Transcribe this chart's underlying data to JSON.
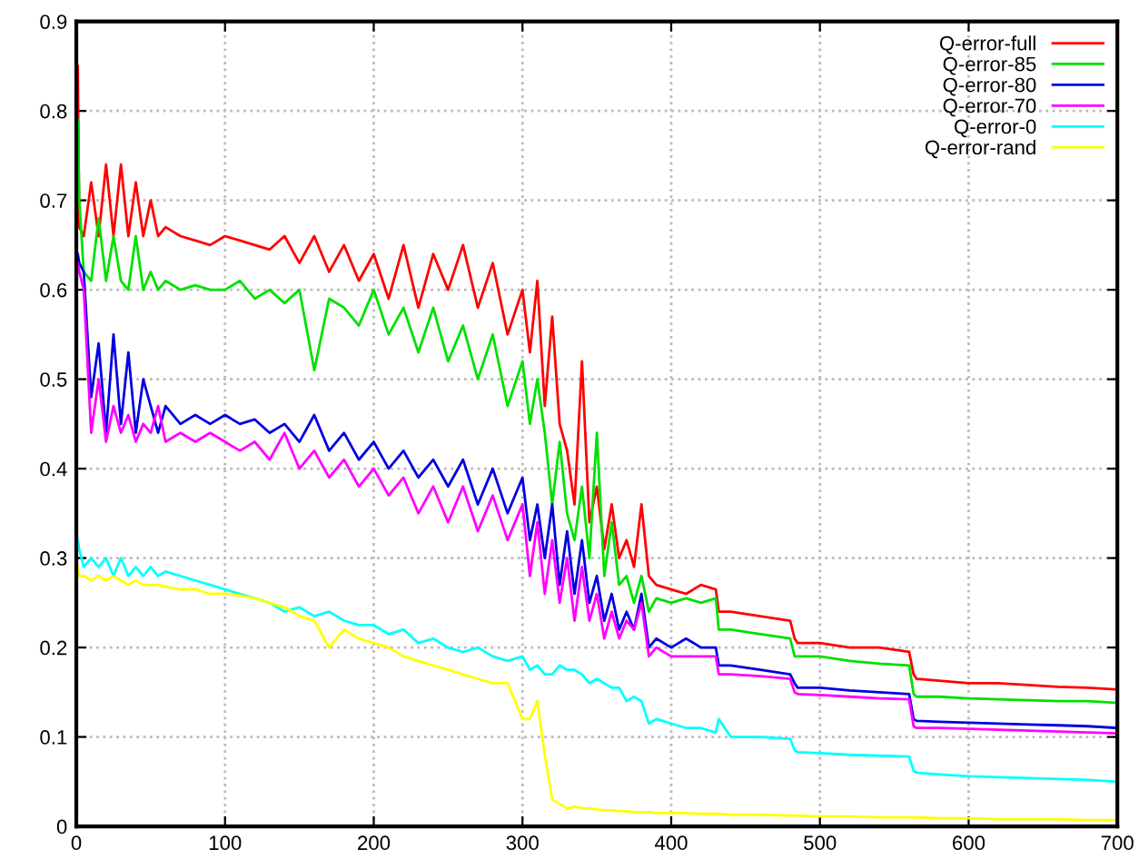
{
  "chart_data": {
    "type": "line",
    "x": [
      1,
      2,
      5,
      10,
      15,
      20,
      25,
      30,
      35,
      40,
      45,
      50,
      55,
      60,
      70,
      80,
      90,
      100,
      110,
      120,
      130,
      140,
      150,
      160,
      170,
      180,
      190,
      200,
      210,
      220,
      230,
      240,
      250,
      260,
      270,
      280,
      290,
      300,
      305,
      310,
      315,
      320,
      325,
      330,
      335,
      340,
      345,
      350,
      355,
      360,
      365,
      370,
      375,
      380,
      385,
      390,
      400,
      410,
      420,
      430,
      432,
      440,
      460,
      480,
      483,
      485,
      500,
      520,
      540,
      560,
      563,
      565,
      580,
      600,
      620,
      640,
      660,
      680,
      700
    ],
    "series": [
      {
        "name": "Q-error-full",
        "color": "#ff0000",
        "values": [
          0.85,
          0.67,
          0.66,
          0.72,
          0.66,
          0.74,
          0.66,
          0.74,
          0.66,
          0.72,
          0.66,
          0.7,
          0.66,
          0.67,
          0.66,
          0.655,
          0.65,
          0.66,
          0.655,
          0.65,
          0.645,
          0.66,
          0.63,
          0.66,
          0.62,
          0.65,
          0.61,
          0.64,
          0.59,
          0.65,
          0.58,
          0.64,
          0.6,
          0.65,
          0.58,
          0.63,
          0.55,
          0.6,
          0.53,
          0.61,
          0.47,
          0.57,
          0.45,
          0.42,
          0.36,
          0.52,
          0.34,
          0.38,
          0.31,
          0.36,
          0.3,
          0.32,
          0.29,
          0.36,
          0.28,
          0.27,
          0.265,
          0.26,
          0.27,
          0.265,
          0.24,
          0.24,
          0.235,
          0.23,
          0.21,
          0.205,
          0.205,
          0.2,
          0.2,
          0.195,
          0.17,
          0.165,
          0.163,
          0.16,
          0.16,
          0.158,
          0.156,
          0.155,
          0.153
        ]
      },
      {
        "name": "Q-error-85",
        "color": "#00e000",
        "values": [
          0.79,
          0.7,
          0.62,
          0.61,
          0.68,
          0.61,
          0.66,
          0.61,
          0.6,
          0.66,
          0.6,
          0.62,
          0.6,
          0.61,
          0.6,
          0.605,
          0.6,
          0.6,
          0.61,
          0.59,
          0.6,
          0.585,
          0.6,
          0.51,
          0.59,
          0.58,
          0.56,
          0.6,
          0.55,
          0.58,
          0.53,
          0.58,
          0.52,
          0.56,
          0.5,
          0.55,
          0.47,
          0.52,
          0.45,
          0.5,
          0.44,
          0.36,
          0.43,
          0.35,
          0.32,
          0.38,
          0.3,
          0.44,
          0.28,
          0.34,
          0.27,
          0.28,
          0.25,
          0.28,
          0.24,
          0.255,
          0.25,
          0.255,
          0.25,
          0.255,
          0.22,
          0.22,
          0.215,
          0.21,
          0.19,
          0.19,
          0.19,
          0.185,
          0.182,
          0.18,
          0.148,
          0.145,
          0.145,
          0.143,
          0.142,
          0.141,
          0.14,
          0.14,
          0.138
        ]
      },
      {
        "name": "Q-error-80",
        "color": "#0000e0",
        "values": [
          0.64,
          0.63,
          0.62,
          0.48,
          0.54,
          0.44,
          0.55,
          0.45,
          0.53,
          0.44,
          0.5,
          0.47,
          0.44,
          0.47,
          0.45,
          0.46,
          0.45,
          0.46,
          0.45,
          0.455,
          0.44,
          0.45,
          0.43,
          0.46,
          0.42,
          0.44,
          0.41,
          0.43,
          0.4,
          0.42,
          0.39,
          0.41,
          0.38,
          0.41,
          0.36,
          0.4,
          0.35,
          0.39,
          0.32,
          0.36,
          0.3,
          0.36,
          0.27,
          0.33,
          0.26,
          0.32,
          0.25,
          0.28,
          0.23,
          0.26,
          0.22,
          0.24,
          0.22,
          0.26,
          0.2,
          0.21,
          0.2,
          0.21,
          0.2,
          0.2,
          0.18,
          0.18,
          0.175,
          0.17,
          0.16,
          0.155,
          0.155,
          0.152,
          0.15,
          0.148,
          0.12,
          0.118,
          0.117,
          0.116,
          0.115,
          0.114,
          0.113,
          0.112,
          0.11
        ]
      },
      {
        "name": "Q-error-70",
        "color": "#ff00ff",
        "values": [
          0.63,
          0.62,
          0.6,
          0.44,
          0.5,
          0.43,
          0.47,
          0.44,
          0.46,
          0.43,
          0.45,
          0.44,
          0.47,
          0.43,
          0.44,
          0.43,
          0.44,
          0.43,
          0.42,
          0.43,
          0.41,
          0.44,
          0.4,
          0.42,
          0.39,
          0.41,
          0.38,
          0.4,
          0.37,
          0.39,
          0.35,
          0.38,
          0.34,
          0.38,
          0.33,
          0.37,
          0.32,
          0.36,
          0.28,
          0.34,
          0.26,
          0.32,
          0.25,
          0.3,
          0.23,
          0.29,
          0.23,
          0.26,
          0.21,
          0.24,
          0.21,
          0.23,
          0.22,
          0.25,
          0.19,
          0.2,
          0.19,
          0.19,
          0.19,
          0.19,
          0.17,
          0.17,
          0.168,
          0.165,
          0.15,
          0.148,
          0.147,
          0.145,
          0.143,
          0.142,
          0.112,
          0.11,
          0.11,
          0.109,
          0.108,
          0.107,
          0.106,
          0.105,
          0.104
        ]
      },
      {
        "name": "Q-error-0",
        "color": "#00ffff",
        "values": [
          0.32,
          0.31,
          0.29,
          0.3,
          0.29,
          0.3,
          0.28,
          0.3,
          0.28,
          0.29,
          0.28,
          0.29,
          0.28,
          0.285,
          0.28,
          0.275,
          0.27,
          0.265,
          0.26,
          0.255,
          0.25,
          0.24,
          0.245,
          0.235,
          0.24,
          0.23,
          0.225,
          0.225,
          0.215,
          0.22,
          0.205,
          0.21,
          0.2,
          0.195,
          0.2,
          0.19,
          0.185,
          0.19,
          0.175,
          0.18,
          0.17,
          0.17,
          0.18,
          0.175,
          0.175,
          0.17,
          0.16,
          0.165,
          0.16,
          0.155,
          0.155,
          0.14,
          0.145,
          0.14,
          0.115,
          0.12,
          0.115,
          0.11,
          0.11,
          0.105,
          0.12,
          0.1,
          0.1,
          0.098,
          0.085,
          0.083,
          0.082,
          0.08,
          0.079,
          0.078,
          0.062,
          0.06,
          0.058,
          0.056,
          0.055,
          0.054,
          0.053,
          0.052,
          0.05
        ]
      },
      {
        "name": "Q-error-rand",
        "color": "#ffff00",
        "values": [
          0.29,
          0.28,
          0.28,
          0.275,
          0.28,
          0.275,
          0.28,
          0.275,
          0.27,
          0.275,
          0.27,
          0.27,
          0.27,
          0.268,
          0.265,
          0.265,
          0.26,
          0.26,
          0.258,
          0.255,
          0.25,
          0.245,
          0.235,
          0.23,
          0.2,
          0.22,
          0.21,
          0.205,
          0.2,
          0.19,
          0.185,
          0.18,
          0.175,
          0.17,
          0.165,
          0.16,
          0.16,
          0.12,
          0.12,
          0.14,
          0.08,
          0.03,
          0.025,
          0.02,
          0.022,
          0.02,
          0.02,
          0.019,
          0.018,
          0.018,
          0.017,
          0.017,
          0.016,
          0.016,
          0.016,
          0.015,
          0.015,
          0.015,
          0.014,
          0.014,
          0.014,
          0.013,
          0.013,
          0.012,
          0.012,
          0.012,
          0.011,
          0.011,
          0.01,
          0.01,
          0.01,
          0.01,
          0.009,
          0.009,
          0.008,
          0.008,
          0.008,
          0.007,
          0.007
        ]
      }
    ],
    "xlim": [
      0,
      700
    ],
    "xticks": [
      0,
      100,
      200,
      300,
      400,
      500,
      600,
      700
    ],
    "ylim": [
      0,
      0.9
    ],
    "yticks": [
      0,
      0.1,
      0.2,
      0.3,
      0.4,
      0.5,
      0.6,
      0.7,
      0.8,
      0.9
    ],
    "grid": true,
    "legend": "top right",
    "marker": "none",
    "line_style": "solid"
  }
}
